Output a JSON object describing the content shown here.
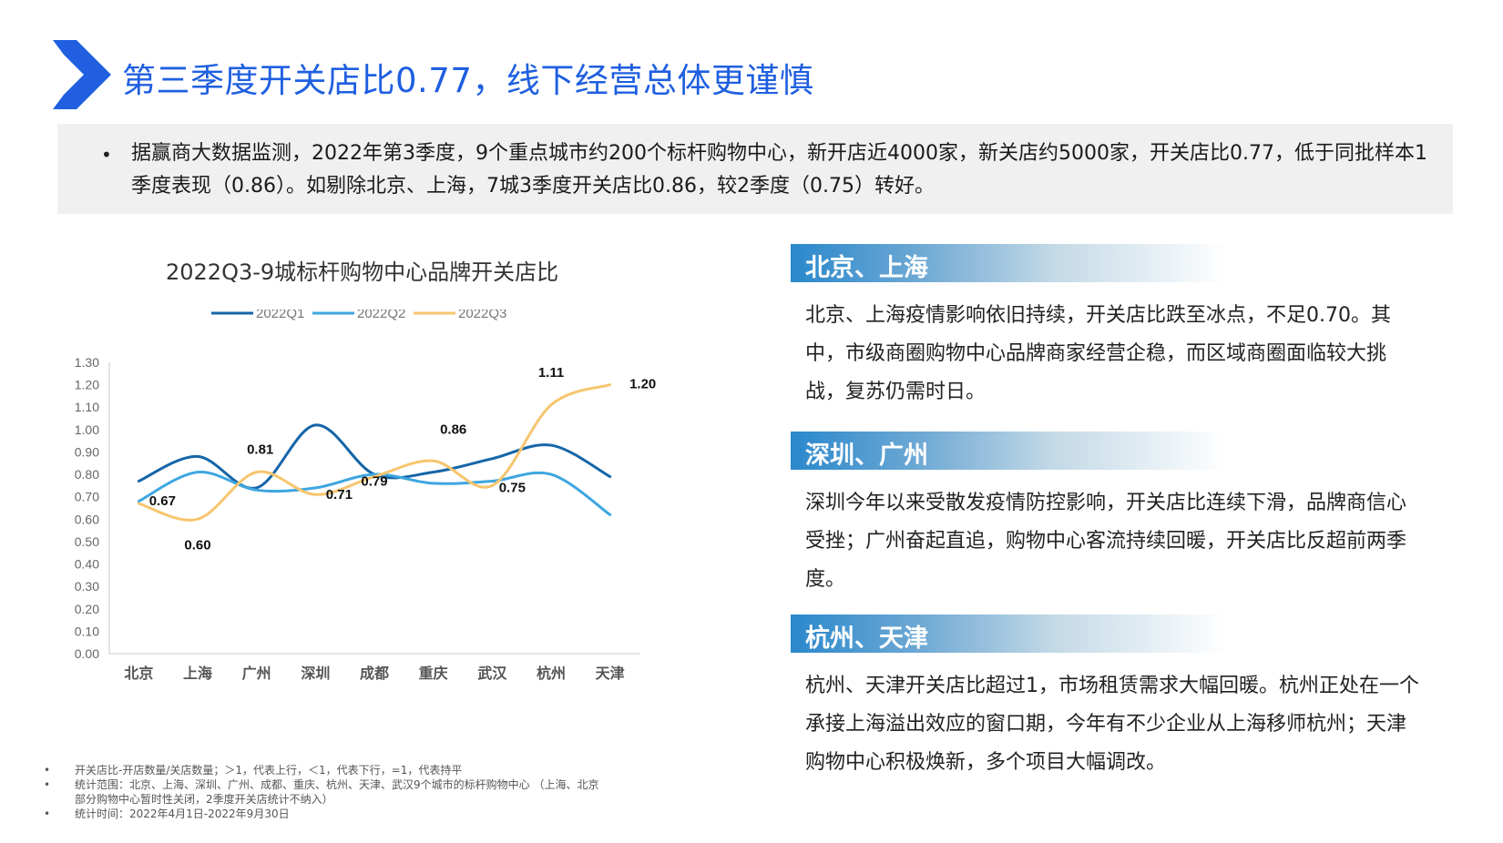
{
  "header": {
    "title": "第三季度开关店比0.77，线下经营总体更谨慎",
    "logo_icon": "chevron-right-icon",
    "accent_color": "#1f5fe0"
  },
  "summary": {
    "bullet": "•",
    "text": "据赢商大数据监测，2022年第3季度，9个重点城市约200个标杆购物中心，新开店近4000家，新关店约5000家，开关店比0.77，低于同批样本1季度表现（0.86）。如剔除北京、上海，7城3季度开关店比0.86，较2季度（0.75）转好。"
  },
  "chart_data": {
    "type": "line",
    "title": "2022Q3-9城标杆购物中心品牌开关店比",
    "categories": [
      "北京",
      "上海",
      "广州",
      "深圳",
      "成都",
      "重庆",
      "武汉",
      "杭州",
      "天津"
    ],
    "series": [
      {
        "name": "2022Q1",
        "color": "#1565a8",
        "values": [
          0.77,
          0.88,
          0.74,
          1.02,
          0.8,
          0.81,
          0.87,
          0.93,
          0.79
        ]
      },
      {
        "name": "2022Q2",
        "color": "#3ea6e0",
        "values": [
          0.68,
          0.81,
          0.73,
          0.74,
          0.8,
          0.76,
          0.77,
          0.8,
          0.62
        ]
      },
      {
        "name": "2022Q3",
        "color": "#f7c56e",
        "values": [
          0.67,
          0.6,
          0.81,
          0.71,
          0.79,
          0.86,
          0.75,
          1.11,
          1.2
        ]
      }
    ],
    "data_labels": [
      "0.67",
      "0.60",
      "0.81",
      "0.71",
      "0.79",
      "0.86",
      "0.75",
      "1.11",
      "1.20"
    ],
    "yticks": [
      "0.00",
      "0.10",
      "0.20",
      "0.30",
      "0.40",
      "0.50",
      "0.60",
      "0.70",
      "0.80",
      "0.90",
      "1.00",
      "1.10",
      "1.20",
      "1.30"
    ],
    "ylim": [
      0,
      1.3
    ],
    "legend": "top-center",
    "grid": false
  },
  "sections": [
    {
      "heading": "北京、上海",
      "text": "北京、上海疫情影响依旧持续，开关店比跌至冰点，不足0.70。其中，市级商圈购物中心品牌商家经营企稳，而区域商圈面临较大挑战，复苏仍需时日。"
    },
    {
      "heading": "深圳、广州",
      "text": "深圳今年以来受散发疫情防控影响，开关店比连续下滑，品牌商信心受挫；广州奋起直追，购物中心客流持续回暖，开关店比反超前两季度。"
    },
    {
      "heading": "杭州、天津",
      "text": "杭州、天津开关店比超过1，市场租赁需求大幅回暖。杭州正处在一个承接上海溢出效应的窗口期，今年有不少企业从上海移师杭州；天津购物中心积极焕新，多个项目大幅调改。"
    }
  ],
  "notes": {
    "bullet": "•",
    "items": [
      "开关店比-开店数量/关店数量；＞1，代表上行，＜1，代表下行，=1，代表持平",
      "统计范围：北京、上海、深圳、广州、成都、重庆、杭州、天津、武汉9个城市的标杆购物中心 （上海、北京部分购物中心暂时性关闭，2季度开关店统计不纳入）",
      "统计时间：2022年4月1日-2022年9月30日"
    ]
  }
}
